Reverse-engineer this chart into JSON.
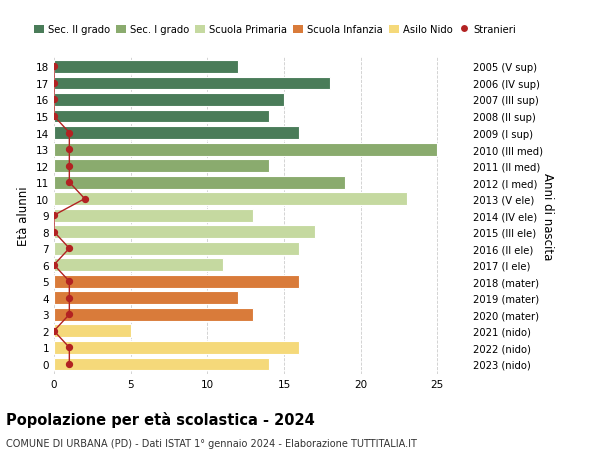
{
  "ages": [
    18,
    17,
    16,
    15,
    14,
    13,
    12,
    11,
    10,
    9,
    8,
    7,
    6,
    5,
    4,
    3,
    2,
    1,
    0
  ],
  "years": [
    "2005 (V sup)",
    "2006 (IV sup)",
    "2007 (III sup)",
    "2008 (II sup)",
    "2009 (I sup)",
    "2010 (III med)",
    "2011 (II med)",
    "2012 (I med)",
    "2013 (V ele)",
    "2014 (IV ele)",
    "2015 (III ele)",
    "2016 (II ele)",
    "2017 (I ele)",
    "2018 (mater)",
    "2019 (mater)",
    "2020 (mater)",
    "2021 (nido)",
    "2022 (nido)",
    "2023 (nido)"
  ],
  "bar_values": [
    12,
    18,
    15,
    14,
    16,
    25,
    14,
    19,
    23,
    13,
    17,
    16,
    11,
    16,
    12,
    13,
    5,
    16,
    14
  ],
  "bar_colors": [
    "#4a7c59",
    "#4a7c59",
    "#4a7c59",
    "#4a7c59",
    "#4a7c59",
    "#8aab6e",
    "#8aab6e",
    "#8aab6e",
    "#c5d9a0",
    "#c5d9a0",
    "#c5d9a0",
    "#c5d9a0",
    "#c5d9a0",
    "#d97b3a",
    "#d97b3a",
    "#d97b3a",
    "#f5d97a",
    "#f5d97a",
    "#f5d97a"
  ],
  "stranieri_values": [
    0,
    0,
    0,
    0,
    1,
    1,
    1,
    1,
    2,
    0,
    0,
    1,
    0,
    1,
    1,
    1,
    0,
    1,
    1
  ],
  "stranieri_color": "#b22222",
  "ylabel": "Età alunni",
  "ylabel2": "Anni di nascita",
  "xlim": [
    0,
    27
  ],
  "xticks": [
    0,
    5,
    10,
    15,
    20,
    25
  ],
  "title": "Popolazione per età scolastica - 2024",
  "subtitle": "COMUNE DI URBANA (PD) - Dati ISTAT 1° gennaio 2024 - Elaborazione TUTTITALIA.IT",
  "legend_labels": [
    "Sec. II grado",
    "Sec. I grado",
    "Scuola Primaria",
    "Scuola Infanzia",
    "Asilo Nido",
    "Stranieri"
  ],
  "legend_colors": [
    "#4a7c59",
    "#8aab6e",
    "#c5d9a0",
    "#d97b3a",
    "#f5d97a",
    "#b22222"
  ],
  "bg_color": "#ffffff",
  "bar_height": 0.78,
  "grid_color": "#cccccc"
}
